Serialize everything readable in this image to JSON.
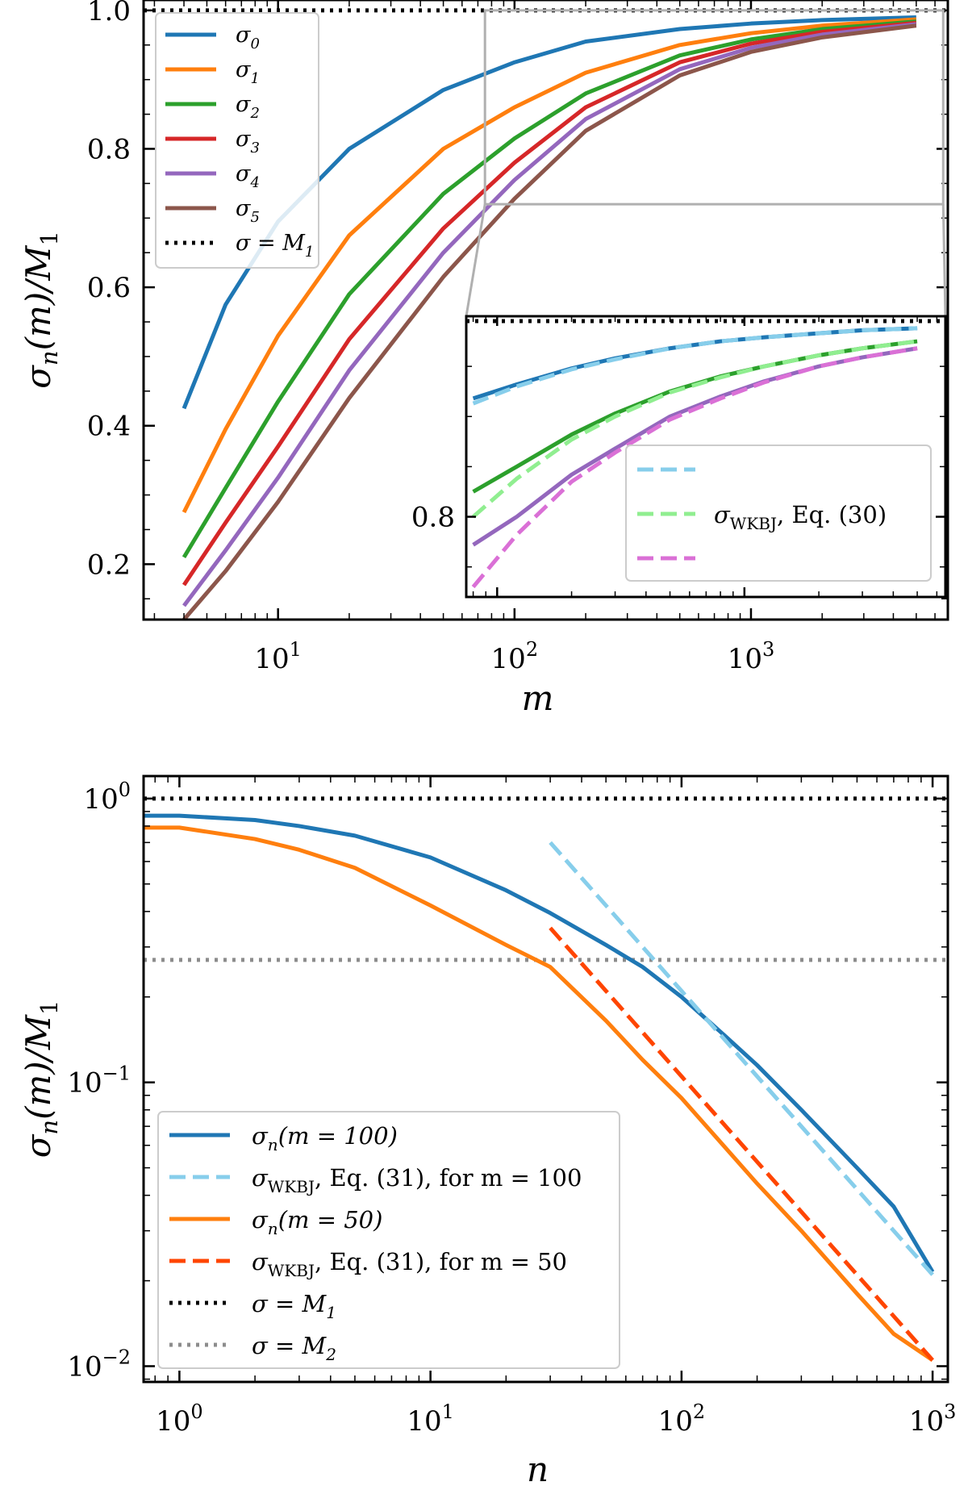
{
  "chart_data": [
    {
      "type": "line",
      "panel": "top",
      "xscale": "log",
      "xlabel": "m",
      "ylabel": "σ_n(m)/M_1",
      "xlim": [
        2.7,
        6800
      ],
      "ylim": [
        0.12,
        1.015
      ],
      "x_ticks": [
        {
          "value": 10,
          "base": "10",
          "exp": "1"
        },
        {
          "value": 100,
          "base": "10",
          "exp": "2"
        },
        {
          "value": 1000,
          "base": "10",
          "exp": "3"
        }
      ],
      "y_ticks": [
        {
          "value": 0.2,
          "label": "0.2"
        },
        {
          "value": 0.4,
          "label": "0.4"
        },
        {
          "value": 0.6,
          "label": "0.6"
        },
        {
          "value": 0.8,
          "label": "0.8"
        },
        {
          "value": 1.0,
          "label": "1.0"
        }
      ],
      "x": [
        4,
        6,
        10,
        20,
        50,
        100,
        200,
        500,
        1000,
        2000,
        5000
      ],
      "series": [
        {
          "name": "σ0",
          "sub": "0",
          "color": "#1f77b4",
          "style": "solid",
          "values": [
            0.425,
            0.575,
            0.695,
            0.8,
            0.885,
            0.925,
            0.955,
            0.973,
            0.981,
            0.986,
            0.99
          ]
        },
        {
          "name": "σ1",
          "sub": "1",
          "color": "#ff7f0e",
          "style": "solid",
          "values": [
            0.275,
            0.395,
            0.53,
            0.675,
            0.8,
            0.86,
            0.91,
            0.95,
            0.967,
            0.978,
            0.987
          ]
        },
        {
          "name": "σ2",
          "sub": "2",
          "color": "#2ca02c",
          "style": "solid",
          "values": [
            0.21,
            0.31,
            0.435,
            0.59,
            0.735,
            0.815,
            0.88,
            0.935,
            0.958,
            0.973,
            0.984
          ]
        },
        {
          "name": "σ3",
          "sub": "3",
          "color": "#d62728",
          "style": "solid",
          "values": [
            0.17,
            0.26,
            0.37,
            0.525,
            0.685,
            0.78,
            0.86,
            0.925,
            0.952,
            0.969,
            0.982
          ]
        },
        {
          "name": "σ4",
          "sub": "4",
          "color": "#9467bd",
          "style": "solid",
          "values": [
            0.14,
            0.22,
            0.325,
            0.48,
            0.65,
            0.755,
            0.843,
            0.915,
            0.946,
            0.965,
            0.98
          ]
        },
        {
          "name": "σ5",
          "sub": "5",
          "color": "#8c564b",
          "style": "solid",
          "values": [
            0.12,
            0.19,
            0.29,
            0.44,
            0.615,
            0.728,
            0.826,
            0.906,
            0.94,
            0.961,
            0.978
          ]
        }
      ],
      "hlines": [
        {
          "name": "σ = M1",
          "value": 1.0,
          "color": "#000000",
          "style": "dotted"
        }
      ],
      "legend": {
        "placement": "top-left",
        "entries": [
          {
            "label": "σ",
            "sub": "0",
            "color": "#1f77b4",
            "style": "solid"
          },
          {
            "label": "σ",
            "sub": "1",
            "color": "#ff7f0e",
            "style": "solid"
          },
          {
            "label": "σ",
            "sub": "2",
            "color": "#2ca02c",
            "style": "solid"
          },
          {
            "label": "σ",
            "sub": "3",
            "color": "#d62728",
            "style": "solid"
          },
          {
            "label": "σ",
            "sub": "4",
            "color": "#9467bd",
            "style": "solid"
          },
          {
            "label": "σ",
            "sub": "5",
            "color": "#8c564b",
            "style": "solid"
          },
          {
            "label": "σ = M",
            "sub": "1",
            "color": "#000000",
            "style": "dotted"
          }
        ]
      },
      "inset": {
        "placement": "lower-right",
        "xscale": "log",
        "xlim": [
          75,
          6500
        ],
        "ylim": [
          0.72,
          1.0
        ],
        "y_ticks": [
          {
            "value": 0.8,
            "label": "0.8"
          }
        ],
        "x": [
          80,
          120,
          200,
          300,
          500,
          800,
          1200,
          2000,
          3000,
          5000
        ],
        "solid": [
          {
            "color": "#1f77b4",
            "values": [
              0.918,
              0.932,
              0.948,
              0.958,
              0.968,
              0.975,
              0.979,
              0.983,
              0.986,
              0.988
            ]
          },
          {
            "color": "#2ca02c",
            "values": [
              0.825,
              0.85,
              0.882,
              0.903,
              0.925,
              0.94,
              0.95,
              0.961,
              0.968,
              0.975
            ]
          },
          {
            "color": "#9467bd",
            "values": [
              0.772,
              0.8,
              0.842,
              0.868,
              0.9,
              0.92,
              0.935,
              0.95,
              0.959,
              0.968
            ]
          }
        ],
        "dashed": [
          {
            "color": "#87ceeb",
            "values": [
              0.913,
              0.93,
              0.947,
              0.957,
              0.968,
              0.975,
              0.979,
              0.983,
              0.986,
              0.988
            ]
          },
          {
            "color": "#90ee90",
            "values": [
              0.8,
              0.838,
              0.877,
              0.9,
              0.924,
              0.939,
              0.95,
              0.961,
              0.968,
              0.975
            ]
          },
          {
            "color": "#da70d6",
            "values": [
              0.73,
              0.782,
              0.835,
              0.864,
              0.897,
              0.918,
              0.934,
              0.95,
              0.959,
              0.968
            ]
          }
        ],
        "hline": {
          "value": 1.0,
          "color": "#000000",
          "style": "dotted"
        },
        "legend": {
          "placement": "lower-right",
          "label_main": "σ",
          "label_sub": "WKBJ",
          "label_rest": ", Eq. (30)",
          "colors": [
            "#87ceeb",
            "#90ee90",
            "#da70d6"
          ]
        }
      }
    },
    {
      "type": "line",
      "panel": "bottom",
      "xscale": "log",
      "yscale": "log",
      "xlabel": "n",
      "ylabel": "σ_n(m)/M_1",
      "xlim": [
        0.72,
        1150
      ],
      "ylim": [
        0.0088,
        1.2
      ],
      "x_ticks": [
        {
          "value": 1,
          "base": "10",
          "exp": "0"
        },
        {
          "value": 10,
          "base": "10",
          "exp": "1"
        },
        {
          "value": 100,
          "base": "10",
          "exp": "2"
        },
        {
          "value": 1000,
          "base": "10",
          "exp": "3"
        }
      ],
      "y_ticks": [
        {
          "value": 1,
          "base": "10",
          "exp": "0"
        },
        {
          "value": 0.1,
          "base": "10",
          "exp": "−1"
        },
        {
          "value": 0.01,
          "base": "10",
          "exp": "−2"
        }
      ],
      "series": [
        {
          "name": "σn(m = 100)",
          "color": "#1f77b4",
          "style": "solid",
          "x": [
            0.72,
            1,
            2,
            3,
            5,
            10,
            20,
            30,
            50,
            70,
            100,
            150,
            200,
            300,
            500,
            700,
            1000
          ],
          "values": [
            0.87,
            0.87,
            0.84,
            0.8,
            0.74,
            0.62,
            0.475,
            0.395,
            0.305,
            0.255,
            0.2,
            0.145,
            0.115,
            0.08,
            0.05,
            0.0365,
            0.0215
          ]
        },
        {
          "name": "σWKBJ, Eq. (31), for m = 100",
          "color": "#87ceeb",
          "style": "dashed",
          "x": [
            30,
            50,
            70,
            100,
            150,
            200,
            300,
            500,
            700,
            1000
          ],
          "values": [
            0.7,
            0.42,
            0.3,
            0.21,
            0.14,
            0.105,
            0.07,
            0.042,
            0.03,
            0.021
          ]
        },
        {
          "name": "σn(m = 50)",
          "color": "#ff7f0e",
          "style": "solid",
          "x": [
            0.72,
            1,
            2,
            3,
            5,
            10,
            20,
            30,
            50,
            70,
            100,
            200,
            300,
            500,
            700,
            1000
          ],
          "values": [
            0.79,
            0.79,
            0.72,
            0.66,
            0.57,
            0.42,
            0.305,
            0.255,
            0.165,
            0.12,
            0.088,
            0.044,
            0.03,
            0.018,
            0.013,
            0.0105
          ]
        },
        {
          "name": "σWKBJ, Eq. (31), for m = 50",
          "color": "#ff4500",
          "style": "dashed",
          "x": [
            30,
            50,
            70,
            100,
            200,
            300,
            500,
            700,
            1000
          ],
          "values": [
            0.35,
            0.21,
            0.15,
            0.105,
            0.0525,
            0.035,
            0.021,
            0.015,
            0.0105
          ]
        }
      ],
      "hlines": [
        {
          "name": "σ = M1",
          "value": 1.0,
          "color": "#000000",
          "style": "dotted"
        },
        {
          "name": "σ = M2",
          "value": 0.27,
          "color": "#8c8c8c",
          "style": "dotted"
        }
      ],
      "legend": {
        "placement": "lower-left",
        "entries": [
          {
            "main": "σ",
            "sub": "n",
            "rest": "(m = 100)",
            "color": "#1f77b4",
            "style": "solid"
          },
          {
            "main": "σ",
            "sub": "WKBJ",
            "rest": ", Eq. (31), for m = 100",
            "color": "#87ceeb",
            "style": "dashed"
          },
          {
            "main": "σ",
            "sub": "n",
            "rest": "(m = 50)",
            "color": "#ff7f0e",
            "style": "solid"
          },
          {
            "main": "σ",
            "sub": "WKBJ",
            "rest": ", Eq. (31), for m = 50",
            "color": "#ff4500",
            "style": "dashed"
          },
          {
            "main": "σ = M",
            "sub": "1",
            "rest": "",
            "color": "#000000",
            "style": "dotted"
          },
          {
            "main": "σ = M",
            "sub": "2",
            "rest": "",
            "color": "#8c8c8c",
            "style": "dotted"
          }
        ]
      }
    }
  ]
}
